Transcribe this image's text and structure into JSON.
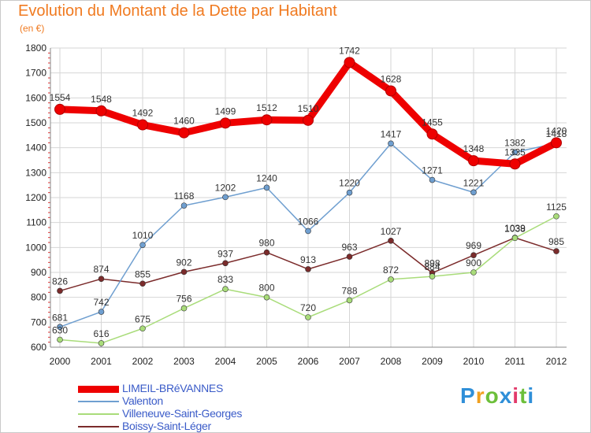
{
  "chart_data": {
    "type": "line",
    "title": "Evolution du Montant de la Dette par Habitant",
    "subtitle": "(en €)",
    "x": [
      "2000",
      "2001",
      "2002",
      "2003",
      "2004",
      "2005",
      "2006",
      "2007",
      "2008",
      "2009",
      "2010",
      "2011",
      "2012"
    ],
    "ylim": [
      600,
      1800
    ],
    "yticks": [
      "600",
      "700",
      "800",
      "900",
      "1000",
      "1100",
      "1200",
      "1300",
      "1400",
      "1500",
      "1600",
      "1700",
      "1800"
    ],
    "grid": true,
    "legend_position": "bottom-left",
    "series": [
      {
        "name": "LIMEIL-BRéVANNES",
        "color": "#ee0000",
        "values": [
          1554,
          1548,
          1492,
          1460,
          1499,
          1512,
          1510,
          1742,
          1628,
          1455,
          1348,
          1335,
          1420
        ],
        "labels": [
          "1554",
          "1548",
          "1492",
          "1460",
          "1499",
          "1512",
          "1510",
          "1742",
          "1628",
          "1455",
          "1348",
          "1335",
          "1420"
        ]
      },
      {
        "name": "Valenton",
        "color": "#6f9fd0",
        "values": [
          681,
          742,
          1010,
          1168,
          1202,
          1240,
          1066,
          1220,
          1417,
          1271,
          1221,
          1382,
          1418
        ],
        "labels": [
          "681",
          "742",
          "1010",
          "1168",
          "1202",
          "1240",
          "1066",
          "1220",
          "1417",
          "1271",
          "1221",
          "1382",
          "1418"
        ]
      },
      {
        "name": "Villeneuve-Saint-Georges",
        "color": "#a9dc7a",
        "values": [
          630,
          616,
          675,
          756,
          833,
          800,
          720,
          788,
          872,
          884,
          900,
          1038,
          1125
        ],
        "labels": [
          "630",
          "616",
          "675",
          "756",
          "833",
          "800",
          "720",
          "788",
          "872",
          "884",
          "900",
          "1038",
          "1125"
        ]
      },
      {
        "name": "Boissy-Saint-Léger",
        "color": "#7b2b2b",
        "values": [
          826,
          874,
          855,
          902,
          937,
          980,
          913,
          963,
          1027,
          898,
          969,
          1039,
          985
        ],
        "labels": [
          "826",
          "874",
          "855",
          "902",
          "937",
          "980",
          "913",
          "963",
          "1027",
          "898",
          "969",
          "1039",
          "985"
        ]
      }
    ]
  },
  "logo": {
    "letters": [
      "P",
      "r",
      "o",
      "x",
      "i",
      "t",
      "i"
    ],
    "colors": [
      "#2f8fd8",
      "#f0a020",
      "#6cbf3a",
      "#2f8fd8",
      "#e23a6a",
      "#6cbf3a",
      "#2f8fd8"
    ]
  }
}
